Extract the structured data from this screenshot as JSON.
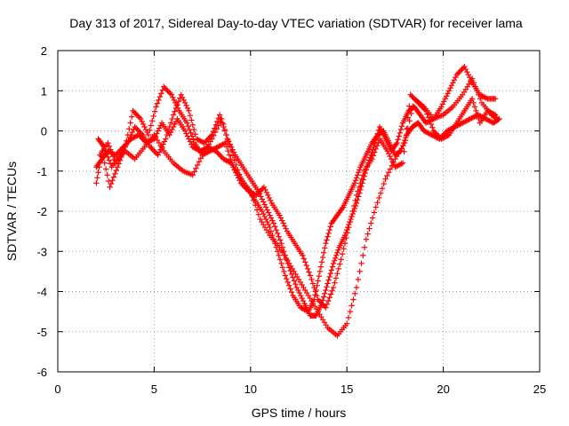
{
  "chart_data": {
    "type": "scatter",
    "title": "Day 313 of 2017, Sidereal Day-to-day VTEC variation (SDTVAR) for receiver lama",
    "xlabel": "GPS time / hours",
    "ylabel": "SDTVAR / TECUs",
    "xlim": [
      0,
      25
    ],
    "ylim": [
      -6,
      2
    ],
    "xticks": [
      0,
      5,
      10,
      15,
      20,
      25
    ],
    "yticks": [
      -6,
      -5,
      -4,
      -3,
      -2,
      -1,
      0,
      1,
      2
    ],
    "grid": true,
    "marker": "+",
    "color": "#ff0000",
    "series": [
      {
        "x": [
          2.0,
          2.3,
          2.6,
          3.0,
          3.4,
          3.8,
          4.2,
          4.6,
          5.0,
          5.4,
          5.8,
          6.2,
          6.6,
          7.0,
          7.4,
          7.8,
          8.2,
          8.6,
          9.0,
          9.4,
          9.8,
          10.2,
          10.6,
          11.0,
          11.4,
          11.8,
          12.2,
          12.6,
          13.0,
          13.3,
          13.6,
          13.9,
          14.2,
          14.5,
          14.8,
          15.1,
          15.4,
          15.7,
          16.0,
          16.3,
          16.6,
          16.9,
          17.2,
          17.5,
          17.8,
          18.1,
          18.4,
          18.7,
          19.0,
          19.4,
          19.8,
          20.2,
          20.6,
          21.0,
          21.4,
          21.8,
          22.2,
          22.6,
          22.9
        ],
        "y": [
          -0.9,
          -0.7,
          -0.5,
          -0.6,
          -0.4,
          -0.2,
          -0.1,
          -0.3,
          -0.2,
          0.2,
          -0.1,
          0.3,
          0.0,
          -0.4,
          -0.5,
          -0.4,
          -0.5,
          -0.7,
          -0.8,
          -1.1,
          -1.4,
          -1.7,
          -2.0,
          -2.4,
          -3.0,
          -3.6,
          -4.1,
          -4.4,
          -4.5,
          -4.2,
          -3.5,
          -2.8,
          -2.3,
          -2.1,
          -1.9,
          -1.6,
          -1.3,
          -0.9,
          -0.6,
          -0.3,
          -0.1,
          0.0,
          -0.3,
          -0.6,
          -0.5,
          -0.1,
          0.1,
          0.2,
          0.0,
          -0.1,
          -0.2,
          0.0,
          0.1,
          0.2,
          0.3,
          0.4,
          0.3,
          0.2,
          0.3
        ]
      },
      {
        "x": [
          2.1,
          2.4,
          2.8,
          3.2,
          3.6,
          4.0,
          4.4,
          4.8,
          5.2,
          5.6,
          6.0,
          6.4,
          6.8,
          7.2,
          7.6,
          8.0,
          8.4,
          8.8,
          9.2,
          9.6,
          10.0,
          10.4,
          10.8,
          11.2,
          11.6,
          12.0,
          12.4,
          12.8,
          13.1,
          13.4,
          13.7,
          14.0,
          14.3,
          14.6,
          14.9,
          15.2,
          15.5,
          15.8,
          16.1,
          16.4,
          16.7,
          17.0,
          17.3,
          17.6,
          17.9,
          18.2,
          18.5,
          18.8,
          19.1,
          19.5,
          19.9,
          20.3,
          20.7,
          21.1,
          21.5,
          21.9,
          22.3,
          22.7
        ],
        "y": [
          -0.2,
          -0.4,
          -0.9,
          -0.6,
          -0.3,
          0.1,
          -0.1,
          -0.4,
          -0.6,
          -0.2,
          0.4,
          0.9,
          0.5,
          -0.2,
          -0.3,
          -0.1,
          0.4,
          -0.2,
          -0.6,
          -0.9,
          -1.2,
          -1.5,
          -1.9,
          -2.3,
          -2.8,
          -3.4,
          -3.9,
          -4.3,
          -4.6,
          -4.6,
          -4.3,
          -3.8,
          -3.3,
          -2.9,
          -2.6,
          -2.2,
          -1.8,
          -1.3,
          -0.8,
          -0.4,
          0.1,
          -0.2,
          -0.5,
          -0.3,
          0.2,
          0.5,
          0.6,
          0.4,
          0.2,
          0.3,
          0.6,
          1.0,
          1.4,
          1.6,
          1.2,
          0.9,
          0.8,
          0.8
        ]
      },
      {
        "x": [
          2.2,
          2.6,
          3.0,
          3.5,
          4.0,
          4.5,
          5.0,
          5.5,
          6.0,
          6.5,
          7.0,
          7.5,
          8.0,
          8.5,
          9.0,
          9.5,
          10.0,
          10.5,
          11.0,
          11.5,
          12.0,
          12.5,
          13.0,
          13.5,
          14.0,
          14.5,
          15.0,
          15.5,
          16.0,
          16.5,
          17.0,
          17.5,
          18.0,
          18.5,
          19.0,
          19.5,
          20.0,
          20.5,
          21.0,
          21.5,
          22.0,
          22.5,
          22.8
        ],
        "y": [
          -0.6,
          -0.3,
          -0.8,
          -0.5,
          -0.7,
          -0.4,
          -0.1,
          -0.5,
          -0.8,
          -1.0,
          -1.1,
          -0.6,
          -0.2,
          0.3,
          -0.5,
          -1.2,
          -1.5,
          -2.2,
          -2.6,
          -2.9,
          -3.3,
          -3.7,
          -4.1,
          -4.5,
          -4.9,
          -5.1,
          -4.8,
          -3.9,
          -2.7,
          -1.9,
          -1.2,
          -0.7,
          -0.3,
          0.8,
          0.6,
          0.3,
          0.4,
          0.6,
          0.9,
          1.3,
          0.7,
          0.4,
          0.3
        ]
      },
      {
        "x": [
          2.0,
          2.3,
          2.7,
          3.1,
          3.5,
          3.9,
          4.3,
          4.7,
          5.1,
          5.5,
          5.9,
          6.3,
          6.7,
          7.1,
          7.5,
          7.9,
          8.3,
          8.7,
          9.1,
          9.5,
          9.9,
          10.3,
          10.7,
          11.1,
          11.5,
          11.9,
          12.3,
          12.7,
          13.1,
          13.5,
          13.9,
          14.3,
          14.7,
          15.1,
          15.5,
          15.9,
          16.3,
          16.7,
          17.1,
          17.5,
          17.9,
          18.3,
          18.7,
          19.1,
          19.5,
          19.9,
          20.3,
          20.7,
          21.1,
          21.5,
          21.9,
          22.3,
          22.7
        ],
        "y": [
          -1.3,
          -0.5,
          -1.4,
          -0.9,
          -0.4,
          0.5,
          0.3,
          -0.1,
          0.6,
          1.1,
          0.9,
          0.5,
          0.2,
          -0.3,
          -0.6,
          -0.5,
          -0.4,
          -0.3,
          -0.9,
          -1.3,
          -1.5,
          -1.6,
          -1.4,
          -1.8,
          -2.1,
          -2.5,
          -2.8,
          -3.1,
          -3.6,
          -4.2,
          -4.4,
          -3.9,
          -3.2,
          -2.4,
          -1.6,
          -1.0,
          -0.7,
          -0.2,
          -0.5,
          -0.9,
          -0.8,
          0.9,
          0.7,
          0.5,
          0.0,
          -0.2,
          -0.1,
          0.2,
          0.5,
          0.8,
          0.2,
          0.5,
          0.4
        ]
      }
    ]
  }
}
